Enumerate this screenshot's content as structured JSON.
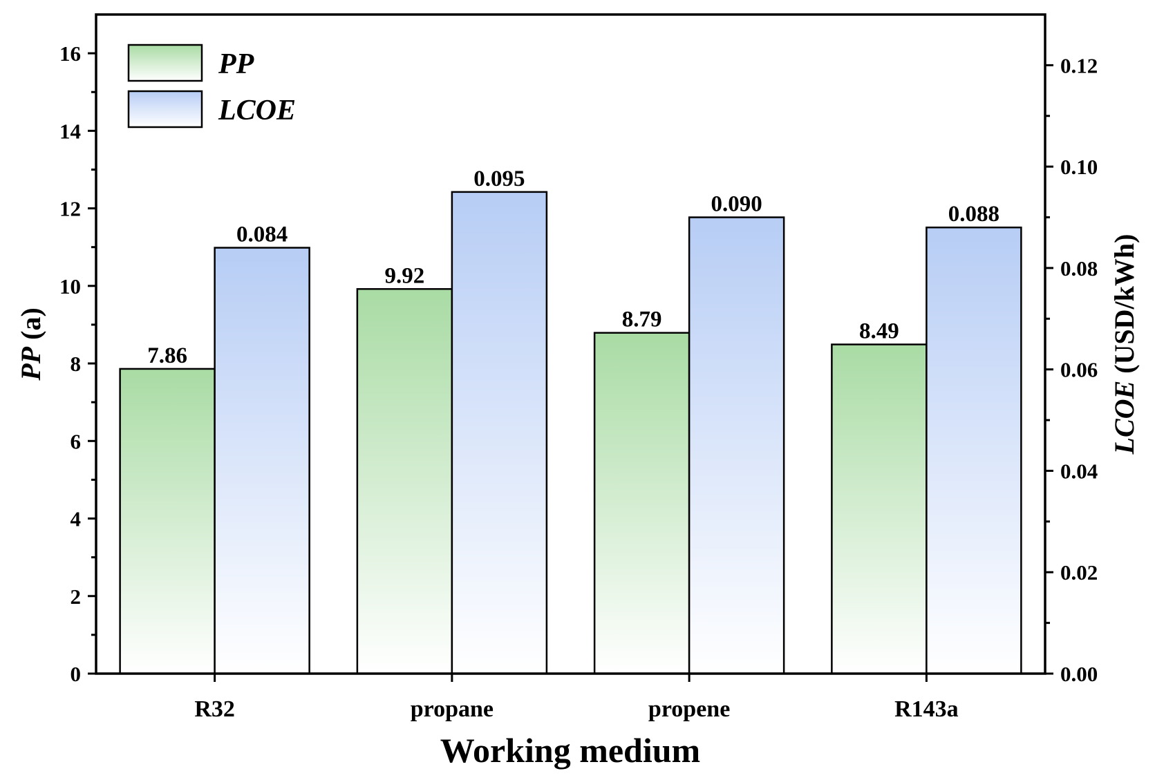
{
  "chart_data": {
    "type": "bar",
    "xlabel": "Working medium",
    "ylabel_left": {
      "italic_part": "PP",
      "plain_part": " (a)"
    },
    "ylabel_right": {
      "italic_part": "LCOE",
      "plain_part": " (USD/kWh)"
    },
    "categories": [
      "R32",
      "propane",
      "propene",
      "R143a"
    ],
    "series": [
      {
        "name": "PP",
        "axis": "left",
        "values": [
          7.86,
          9.92,
          8.79,
          8.49
        ],
        "labels": [
          "7.86",
          "9.92",
          "8.79",
          "8.49"
        ],
        "color_top": "#a9dba4",
        "color_bottom": "#ffffff"
      },
      {
        "name": "LCOE",
        "axis": "right",
        "values": [
          0.084,
          0.095,
          0.09,
          0.088
        ],
        "labels": [
          "0.084",
          "0.095",
          "0.090",
          "0.088"
        ],
        "color_top": "#b7cdf5",
        "color_bottom": "#ffffff"
      }
    ],
    "ylim_left": [
      0,
      17
    ],
    "ylim_right": [
      0,
      0.13
    ],
    "left_ticks": [
      0,
      2,
      4,
      6,
      8,
      10,
      12,
      14,
      16
    ],
    "left_tick_labels": [
      "0",
      "2",
      "4",
      "6",
      "8",
      "10",
      "12",
      "14",
      "16"
    ],
    "right_ticks": [
      0,
      0.02,
      0.04,
      0.06,
      0.08,
      0.1,
      0.12
    ],
    "right_tick_labels": [
      "0.00",
      "0.02",
      "0.04",
      "0.06",
      "0.08",
      "0.10",
      "0.12"
    ],
    "legend": {
      "position": "top-left",
      "entries": [
        "PP",
        "LCOE"
      ]
    },
    "grid": false
  }
}
